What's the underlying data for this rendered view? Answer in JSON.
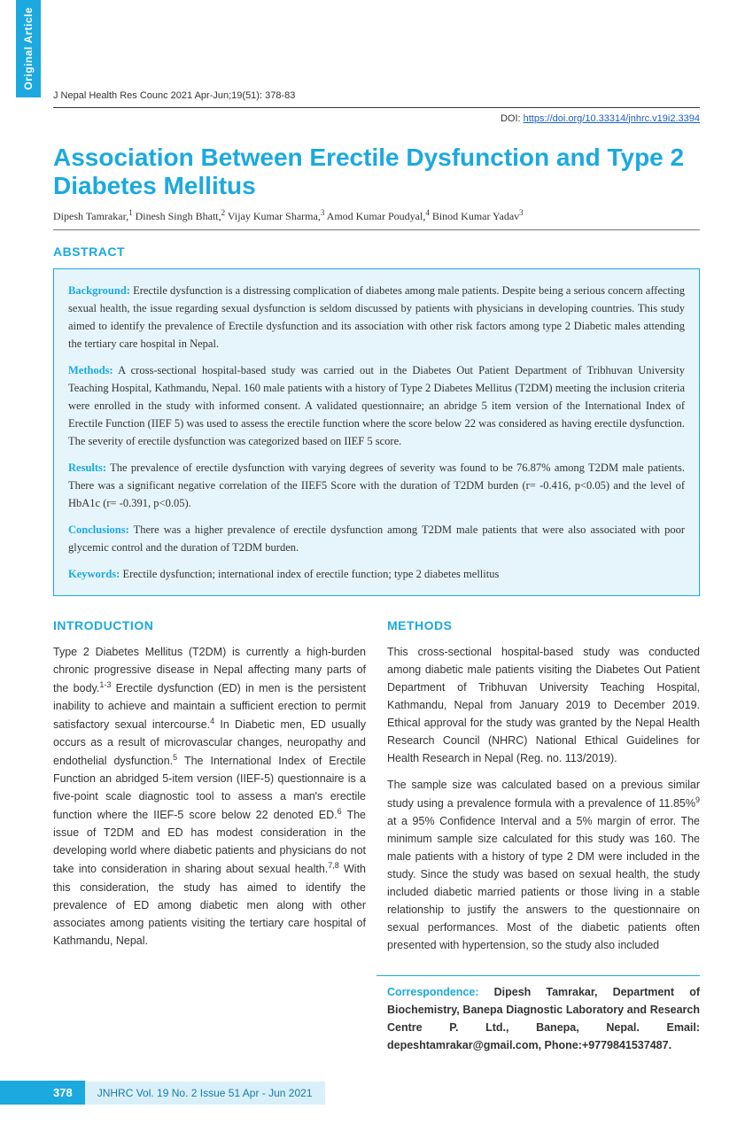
{
  "sideTab": "Original Article",
  "journalRef": "J Nepal Health Res Counc 2021 Apr-Jun;19(51): 378-83",
  "doi": {
    "prefix": "DOI:  ",
    "url": "https://doi.org/10.33314/jnhrc.v19i2.3394"
  },
  "title": "Association Between Erectile Dysfunction and Type 2 Diabetes Mellitus",
  "authorsHtml": "Dipesh Tamrakar,<sup>1</sup> Dinesh Singh Bhatt,<sup>2</sup> Vijay Kumar Sharma,<sup>3</sup> Amod Kumar Poudyal,<sup>4</sup> Binod Kumar Yadav<sup>3</sup>",
  "abstractHeading": "ABSTRACT",
  "abstract": {
    "background": {
      "label": "Background:",
      "text": " Erectile dysfunction is a distressing complication of diabetes among male patients. Despite being a serious concern affecting sexual health, the issue regarding sexual dysfunction is seldom discussed by patients with physicians in developing countries. This study aimed to identify the prevalence of Erectile dysfunction and its association with other risk factors among type 2 Diabetic males attending the tertiary care hospital in Nepal."
    },
    "methods": {
      "label": "Methods:",
      "text": " A cross-sectional hospital-based study was carried out in the Diabetes Out Patient Department of Tribhuvan University Teaching Hospital, Kathmandu, Nepal. 160 male patients with a history of Type 2 Diabetes Mellitus (T2DM) meeting the inclusion criteria were enrolled in the study with informed consent. A validated questionnaire; an abridge 5 item version of the International Index of Erectile Function (IIEF 5) was used to assess the erectile function where the score below 22 was considered as having erectile dysfunction. The severity of erectile dysfunction was categorized based on IIEF 5 score."
    },
    "results": {
      "label": "Results:",
      "text": " The prevalence of erectile dysfunction with varying degrees of severity was found to be 76.87% among T2DM male patients. There was a significant negative correlation of the IIEF5 Score with the duration of T2DM burden (r= -0.416, p<0.05) and the level of HbA1c (r= -0.391, p<0.05)."
    },
    "conclusions": {
      "label": "Conclusions:",
      "text": " There was a higher prevalence of erectile dysfunction among T2DM male patients that were also associated with poor glycemic control and the duration of T2DM burden."
    },
    "keywords": {
      "label": "Keywords:",
      "text": " Erectile dysfunction; international index of erectile function; type 2 diabetes mellitus"
    }
  },
  "introHeading": "INTRODUCTION",
  "introHtml": "Type 2 Diabetes Mellitus (T2DM) is currently a high-burden chronic progressive disease in Nepal affecting many parts of the body.<sup>1-3</sup> Erectile dysfunction (ED) in men is the persistent inability to achieve and maintain a sufficient erection to permit satisfactory sexual intercourse.<sup>4</sup> In Diabetic men, ED usually occurs as a result of microvascular changes, neuropathy and endothelial dysfunction.<sup>5</sup> The International Index of Erectile Function an abridged 5-item version (IIEF-5) questionnaire is a five-point scale diagnostic tool to assess a man's erectile function where the IIEF-5 score below 22 denoted ED.<sup>6</sup> The issue of T2DM and ED has modest consideration in the developing world where diabetic patients and physicians do not take into consideration in sharing about sexual health.<sup>7,8</sup> With this consideration, the study has aimed to identify the prevalence of ED among diabetic men along with other associates among patients visiting the tertiary care hospital of Kathmandu, Nepal.",
  "methodsHeading": "METHODS",
  "methodsP1": "This cross-sectional hospital-based study was conducted among diabetic male patients visiting the Diabetes Out Patient Department of Tribhuvan University Teaching Hospital, Kathmandu, Nepal from January 2019 to December 2019. Ethical approval for the study was granted by the Nepal Health Research Council (NHRC) National Ethical Guidelines for Health Research in Nepal (Reg. no. 113/2019).",
  "methodsP2Html": "The sample size was calculated based on a previous similar study using a prevalence formula with a prevalence of 11.85%<sup>9</sup> at a 95% Confidence Interval and a 5% margin of error. The minimum sample size calculated for this study was 160. The male patients with a history of type 2 DM were included in the study. Since the study was based on sexual health, the study included diabetic married patients or those living in a stable relationship to justify the answers to the questionnaire on sexual performances. Most of the diabetic patients often presented with hypertension, so the study also included",
  "correspondence": {
    "label": "Correspondence:",
    "text": " Dipesh Tamrakar, Department of Biochemistry, Banepa Diagnostic Laboratory and Research Centre P. Ltd., Banepa, Nepal. Email: depeshtamrakar@gmail.com, Phone:+9779841537487."
  },
  "footer": {
    "pageNum": "378",
    "text": "JNHRC Vol. 19 No. 2 Issue 51 Apr - Jun 2021"
  },
  "colors": {
    "brand": "#1ba9e0",
    "abstractBg": "#e6f5fb",
    "footerBg": "#d9f0fa",
    "link": "#1a5fcc"
  }
}
